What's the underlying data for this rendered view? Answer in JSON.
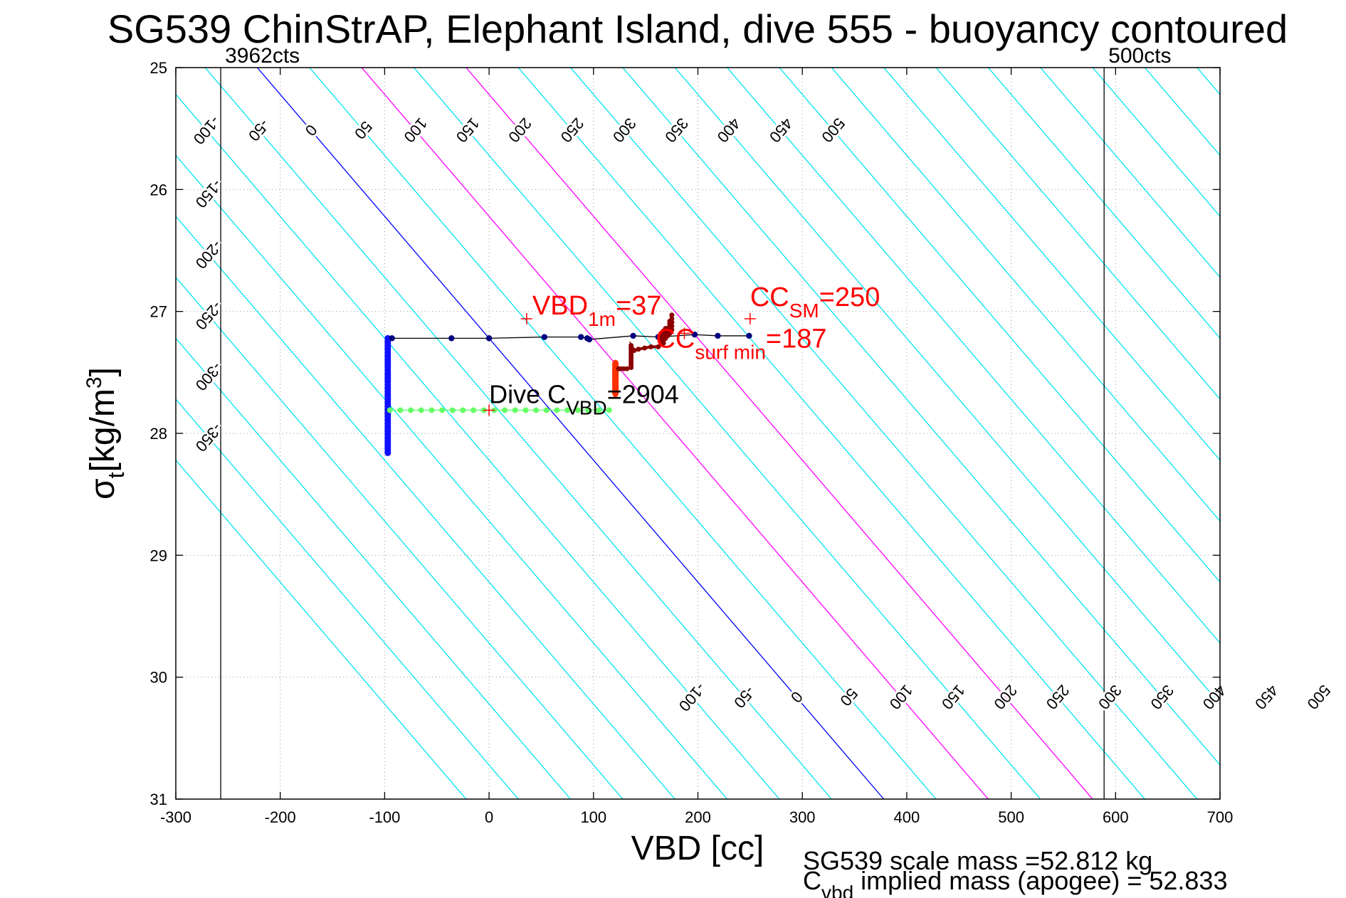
{
  "chart_data": {
    "type": "scatter",
    "title": "SG539 ChinStrAP, Elephant Island, dive 555 - buoyancy contoured",
    "xlabel": "VBD [cc]",
    "ylabel_main": "σ",
    "ylabel_sub": "t",
    "ylabel_units": "[kg/m",
    "ylabel_sup": "3",
    "ylabel_close": "]",
    "xlim": [
      -300,
      700
    ],
    "ylim": [
      25,
      31
    ],
    "y_reversed": true,
    "grid": "dotted",
    "xticks": [
      -300,
      -200,
      -100,
      0,
      100,
      200,
      300,
      400,
      500,
      600,
      700
    ],
    "yticks": [
      25,
      26,
      27,
      28,
      29,
      30,
      31
    ],
    "count_lines": [
      {
        "label": "3962cts",
        "x": -257
      },
      {
        "label": "500cts",
        "x": 589
      }
    ],
    "contours": {
      "slope_cc_per_sigma": 100,
      "colors": {
        "normal": "#00e5ee",
        "zero": "#0000ff",
        "highlight": "#ff00ff"
      },
      "values": [
        -400,
        -350,
        -300,
        -250,
        -200,
        -150,
        -100,
        -50,
        0,
        50,
        100,
        150,
        200,
        250,
        300,
        350,
        400,
        450,
        500,
        550,
        600,
        650,
        700,
        750,
        800,
        850,
        900,
        950
      ],
      "highlighted": [
        100,
        200
      ],
      "labels_top": [
        -350,
        -300,
        -250,
        -200,
        -150,
        -100,
        -50,
        0,
        50,
        100,
        150,
        200,
        250,
        300,
        350,
        400,
        450,
        500
      ],
      "labels_bottom": [
        -100,
        -50,
        0,
        50,
        100,
        150,
        200,
        250,
        300,
        350,
        400,
        450,
        500
      ]
    },
    "series": [
      {
        "name": "",
        "role": "descent-column",
        "color": "#1010ff",
        "x": [
          -97,
          -97,
          -97,
          -97,
          -97,
          -97,
          -97,
          -97,
          -97,
          -97,
          -97,
          -97,
          -97,
          -97,
          -97,
          -97,
          -97,
          -97,
          -97,
          -97,
          -97,
          -97,
          -97,
          -97,
          -97,
          -97,
          -97,
          -97,
          -97,
          -97,
          -97,
          -97,
          -97,
          -97,
          -97,
          -97,
          -97,
          -97,
          -97,
          -97,
          -97,
          -97,
          -97,
          -97,
          -97,
          -97,
          -97,
          -97
        ],
        "y": [
          27.22,
          27.24,
          27.26,
          27.28,
          27.3,
          27.32,
          27.34,
          27.36,
          27.38,
          27.4,
          27.42,
          27.44,
          27.46,
          27.48,
          27.5,
          27.52,
          27.54,
          27.56,
          27.58,
          27.6,
          27.62,
          27.64,
          27.66,
          27.68,
          27.7,
          27.72,
          27.74,
          27.76,
          27.78,
          27.8,
          27.82,
          27.84,
          27.86,
          27.88,
          27.9,
          27.92,
          27.94,
          27.96,
          27.98,
          28.0,
          28.02,
          28.04,
          28.06,
          28.08,
          28.1,
          28.12,
          28.14,
          28.16
        ]
      },
      {
        "name": "",
        "role": "near-surface-path",
        "color": "#000080",
        "x": [
          -93,
          -36,
          0,
          53,
          88,
          94,
          96,
          138,
          162,
          197,
          219,
          249
        ],
        "y": [
          27.22,
          27.22,
          27.22,
          27.21,
          27.21,
          27.22,
          27.23,
          27.2,
          27.21,
          27.19,
          27.2,
          27.2
        ]
      },
      {
        "name": "",
        "role": "green-line",
        "color": "#66ff66",
        "x": [
          -95,
          -85,
          -75,
          -65,
          -55,
          -45,
          -35,
          -25,
          -15,
          -5,
          5,
          15,
          25,
          35,
          45,
          55,
          65,
          75,
          85,
          95,
          105,
          115
        ],
        "y": [
          27.81,
          27.81,
          27.81,
          27.81,
          27.81,
          27.81,
          27.81,
          27.81,
          27.81,
          27.81,
          27.81,
          27.81,
          27.81,
          27.81,
          27.81,
          27.81,
          27.81,
          27.81,
          27.81,
          27.81,
          27.81,
          27.81
        ]
      },
      {
        "name": "",
        "role": "orange-bar",
        "color": "#ff3000",
        "x": [
          121,
          121,
          121,
          121,
          121,
          121,
          121,
          121,
          121,
          121,
          121,
          121,
          121,
          121
        ],
        "y": [
          27.42,
          27.44,
          27.46,
          27.48,
          27.5,
          27.52,
          27.54,
          27.56,
          27.58,
          27.6,
          27.62,
          27.64,
          27.66,
          27.68
        ]
      },
      {
        "name": "",
        "role": "dark-red-steps",
        "color": "#8b0000",
        "x": [
          124,
          126,
          129,
          132,
          136,
          136,
          136,
          136,
          136,
          136,
          136,
          136,
          136,
          136,
          139,
          143,
          149,
          155,
          162,
          165,
          165,
          165,
          165,
          165,
          167,
          167,
          167,
          167,
          167,
          167,
          169,
          169,
          169,
          169,
          169,
          170,
          170,
          170,
          170,
          171,
          171,
          171,
          171,
          173,
          173,
          173,
          173,
          173,
          173,
          175,
          175,
          175,
          175,
          175
        ],
        "y": [
          27.47,
          27.47,
          27.47,
          27.47,
          27.46,
          27.44,
          27.42,
          27.4,
          27.38,
          27.36,
          27.34,
          27.32,
          27.3,
          27.28,
          27.32,
          27.31,
          27.3,
          27.29,
          27.29,
          27.27,
          27.25,
          27.23,
          27.21,
          27.19,
          27.26,
          27.24,
          27.22,
          27.2,
          27.18,
          27.16,
          27.22,
          27.2,
          27.18,
          27.16,
          27.14,
          27.2,
          27.18,
          27.16,
          27.14,
          27.2,
          27.18,
          27.16,
          27.14,
          27.18,
          27.16,
          27.14,
          27.12,
          27.1,
          27.08,
          27.15,
          27.12,
          27.09,
          27.06,
          27.03
        ]
      }
    ],
    "markers": [
      {
        "color": "#ff0000",
        "x": 36,
        "y": 27.06,
        "label": "VBD",
        "sub": "1m",
        "value": "=37"
      },
      {
        "color": "#ff0000",
        "x": 250,
        "y": 27.06,
        "label": "CC",
        "sub": "SM",
        "value": "=250"
      },
      {
        "color": "#ff0000",
        "x": 187,
        "y": 27.18,
        "label": "CC",
        "sub": "surf min",
        "value": "=187"
      },
      {
        "color": "#ff0000",
        "x": 0,
        "y": 27.81,
        "label": "Dive C",
        "sub": "VBD",
        "value": "=2904"
      }
    ],
    "footer": {
      "line1": "SG539 scale mass =52.812 kg",
      "line2_main": "C",
      "line2_sub": "vbd",
      "line2_rest": " implied mass (apogee) = 52.833"
    }
  }
}
